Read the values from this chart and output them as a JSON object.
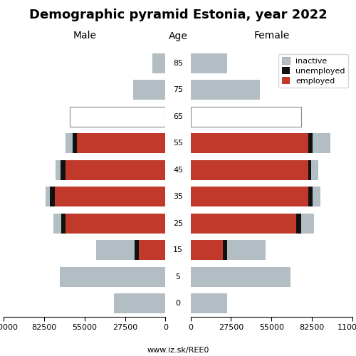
{
  "title": "Demographic pyramid Estonia, year 2022",
  "age_groups": [
    0,
    5,
    15,
    25,
    35,
    45,
    55,
    65,
    75,
    85
  ],
  "male": {
    "inactive": [
      35000,
      72000,
      26000,
      5000,
      3000,
      3000,
      5000,
      65000,
      22000,
      9000
    ],
    "unemployed": [
      0,
      0,
      3000,
      3000,
      3500,
      3500,
      3000,
      0,
      0,
      0
    ],
    "employed": [
      0,
      0,
      18000,
      68000,
      75000,
      68000,
      60000,
      0,
      0,
      0
    ]
  },
  "female": {
    "inactive": [
      25000,
      68000,
      26000,
      9000,
      5000,
      5000,
      12000,
      75000,
      47000,
      25000
    ],
    "unemployed": [
      0,
      0,
      3000,
      3000,
      3000,
      2000,
      3000,
      0,
      0,
      0
    ],
    "employed": [
      0,
      0,
      22000,
      72000,
      80000,
      80000,
      80000,
      0,
      0,
      0
    ]
  },
  "colors": {
    "inactive": "#b2bec3",
    "unemployed": "#111111",
    "employed": "#c0392b"
  },
  "xlim": 110000,
  "bar_height": 0.75,
  "male_header": "Male",
  "female_header": "Female",
  "age_header": "Age",
  "url": "www.iz.sk/REE0",
  "legend_labels": [
    "inactive",
    "unemployed",
    "employed"
  ],
  "title_fontsize": 13,
  "header_fontsize": 10,
  "tick_fontsize": 8,
  "url_fontsize": 8,
  "legend_fontsize": 8
}
